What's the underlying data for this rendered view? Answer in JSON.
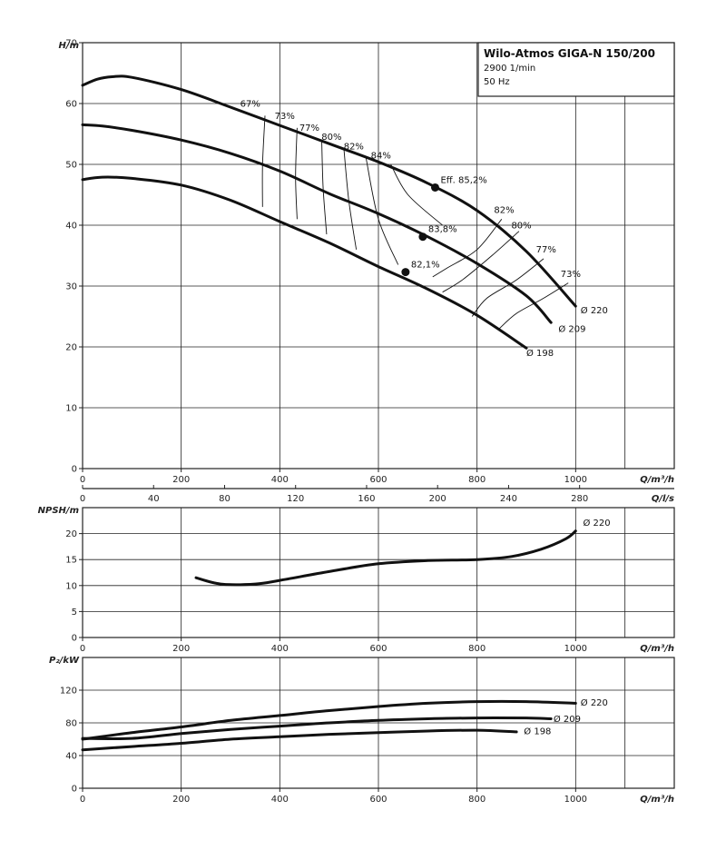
{
  "title": {
    "name": "Wilo-Atmos GIGA-N 150/200",
    "speed": "2900 1/min",
    "frequency": "50 Hz"
  },
  "chart_data": [
    {
      "type": "line",
      "name": "head",
      "ylabel": "H/m",
      "xlabel": "Q/m³/h",
      "xlim": [
        0,
        1200
      ],
      "ylim": [
        0,
        70
      ],
      "xticks": [
        0,
        200,
        400,
        600,
        800,
        1000
      ],
      "yticks": [
        0,
        10,
        20,
        30,
        40,
        50,
        60,
        70
      ],
      "secondary_x": {
        "label": "Q/l/s",
        "ticks": [
          0,
          40,
          80,
          120,
          160,
          200,
          240,
          280
        ]
      },
      "grid": true,
      "series": [
        {
          "name": "Ø 220",
          "points": [
            [
              0,
              63
            ],
            [
              30,
              64
            ],
            [
              60,
              64.4
            ],
            [
              100,
              64.3
            ],
            [
              200,
              62.3
            ],
            [
              300,
              59.4
            ],
            [
              400,
              56.4
            ],
            [
              500,
              53.4
            ],
            [
              600,
              50.4
            ],
            [
              700,
              46.9
            ],
            [
              800,
              42.4
            ],
            [
              900,
              35.7
            ],
            [
              1000,
              26.7
            ]
          ]
        },
        {
          "name": "Ø 209",
          "points": [
            [
              0,
              56.5
            ],
            [
              40,
              56.3
            ],
            [
              100,
              55.6
            ],
            [
              200,
              54
            ],
            [
              300,
              51.8
            ],
            [
              400,
              48.9
            ],
            [
              500,
              45.2
            ],
            [
              600,
              41.9
            ],
            [
              700,
              38.1
            ],
            [
              800,
              33.7
            ],
            [
              900,
              28.4
            ],
            [
              950,
              24
            ]
          ]
        },
        {
          "name": "Ø 198",
          "points": [
            [
              0,
              47.5
            ],
            [
              40,
              47.9
            ],
            [
              100,
              47.7
            ],
            [
              200,
              46.6
            ],
            [
              300,
              44.1
            ],
            [
              400,
              40.6
            ],
            [
              500,
              37.1
            ],
            [
              600,
              33.2
            ],
            [
              700,
              29.5
            ],
            [
              800,
              25.2
            ],
            [
              900,
              19.8
            ]
          ]
        }
      ],
      "efficiency_lines": [
        {
          "label": "67%",
          "points": [
            [
              370,
              58
            ],
            [
              365,
              50
            ],
            [
              365,
              43
            ]
          ]
        },
        {
          "label": "73%",
          "points": [
            [
              435,
              56
            ],
            [
              432,
              48
            ],
            [
              435,
              41
            ]
          ]
        },
        {
          "label": "77%",
          "points": [
            [
              485,
              54
            ],
            [
              488,
              46
            ],
            [
              495,
              38.5
            ]
          ]
        },
        {
          "label": "80%",
          "points": [
            [
              530,
              52.5
            ],
            [
              540,
              44
            ],
            [
              555,
              36
            ]
          ]
        },
        {
          "label": "82%",
          "points": [
            [
              575,
              51
            ],
            [
              600,
              41
            ],
            [
              640,
              33.5
            ]
          ]
        },
        {
          "label": "84%",
          "points": [
            [
              625,
              50
            ],
            [
              660,
              45
            ],
            [
              730,
              40
            ]
          ]
        },
        {
          "label": "82%",
          "points": [
            [
              850,
              41
            ],
            [
              800,
              36
            ],
            [
              740,
              33
            ],
            [
              710,
              31.5
            ]
          ]
        },
        {
          "label": "80%",
          "points": [
            [
              885,
              39
            ],
            [
              830,
              35
            ],
            [
              770,
              31
            ],
            [
              730,
              29
            ]
          ]
        },
        {
          "label": "77%",
          "points": [
            [
              935,
              34.5
            ],
            [
              880,
              31
            ],
            [
              820,
              28
            ],
            [
              790,
              25
            ]
          ]
        },
        {
          "label": "73%",
          "points": [
            [
              985,
              30.5
            ],
            [
              935,
              28
            ],
            [
              880,
              25.5
            ],
            [
              845,
              23
            ]
          ]
        }
      ],
      "efficiency_labels": [
        {
          "text": "67%",
          "x": 340,
          "y": 59.5
        },
        {
          "text": "73%",
          "x": 410,
          "y": 57.5
        },
        {
          "text": "77%",
          "x": 460,
          "y": 55.5
        },
        {
          "text": "80%",
          "x": 505,
          "y": 54
        },
        {
          "text": "82%",
          "x": 550,
          "y": 52.5
        },
        {
          "text": "84%",
          "x": 605,
          "y": 51
        },
        {
          "text": "82%",
          "x": 855,
          "y": 42
        },
        {
          "text": "80%",
          "x": 890,
          "y": 39.5
        },
        {
          "text": "77%",
          "x": 940,
          "y": 35.5
        },
        {
          "text": "73%",
          "x": 990,
          "y": 31.5
        }
      ],
      "best_efficiency_points": [
        {
          "label": "Eff. 85,2%",
          "x": 715,
          "y": 46.2
        },
        {
          "label": "83,8%",
          "x": 690,
          "y": 38.1
        },
        {
          "label": "82,1%",
          "x": 655,
          "y": 32.3
        }
      ],
      "end_labels": [
        {
          "text": "Ø 220",
          "x": 1010,
          "y": 25.5
        },
        {
          "text": "Ø 209",
          "x": 965,
          "y": 22.5
        },
        {
          "text": "Ø 198",
          "x": 900,
          "y": 18.5
        }
      ]
    },
    {
      "type": "line",
      "name": "npsh",
      "ylabel": "NPSH/m",
      "xlabel": "Q/m³/h",
      "xlim": [
        0,
        1200
      ],
      "ylim": [
        0,
        25
      ],
      "xticks": [
        0,
        200,
        400,
        600,
        800,
        1000
      ],
      "yticks": [
        0,
        5,
        10,
        15,
        20
      ],
      "grid": true,
      "series": [
        {
          "name": "Ø 220",
          "points": [
            [
              230,
              11.5
            ],
            [
              280,
              10.3
            ],
            [
              350,
              10.3
            ],
            [
              400,
              11
            ],
            [
              500,
              12.7
            ],
            [
              600,
              14.2
            ],
            [
              700,
              14.8
            ],
            [
              800,
              15
            ],
            [
              870,
              15.6
            ],
            [
              930,
              17
            ],
            [
              980,
              19
            ],
            [
              1000,
              20.5
            ]
          ]
        }
      ],
      "end_labels": [
        {
          "text": "Ø 220",
          "x": 1015,
          "y": 21.5
        }
      ]
    },
    {
      "type": "line",
      "name": "power",
      "ylabel": "P₂/kW",
      "xlabel": "Q/m³/h",
      "xlim": [
        0,
        1200
      ],
      "ylim": [
        0,
        160
      ],
      "xticks": [
        0,
        200,
        400,
        600,
        800,
        1000
      ],
      "yticks": [
        0,
        40,
        80,
        120
      ],
      "grid": true,
      "series": [
        {
          "name": "Ø 220",
          "points": [
            [
              0,
              60
            ],
            [
              100,
              68
            ],
            [
              200,
              75
            ],
            [
              300,
              83
            ],
            [
              400,
              89
            ],
            [
              500,
              95
            ],
            [
              600,
              100
            ],
            [
              700,
              104
            ],
            [
              800,
              106
            ],
            [
              900,
              106
            ],
            [
              1000,
              104
            ]
          ]
        },
        {
          "name": "Ø 209",
          "points": [
            [
              0,
              61
            ],
            [
              100,
              61
            ],
            [
              200,
              67
            ],
            [
              300,
              72
            ],
            [
              400,
              76
            ],
            [
              500,
              80
            ],
            [
              600,
              83
            ],
            [
              700,
              85
            ],
            [
              800,
              86
            ],
            [
              900,
              86
            ],
            [
              950,
              85
            ]
          ]
        },
        {
          "name": "Ø 198",
          "points": [
            [
              0,
              47
            ],
            [
              100,
              51
            ],
            [
              200,
              55
            ],
            [
              300,
              60
            ],
            [
              400,
              63
            ],
            [
              500,
              66
            ],
            [
              600,
              68
            ],
            [
              700,
              70
            ],
            [
              800,
              71
            ],
            [
              880,
              69
            ]
          ]
        }
      ],
      "end_labels": [
        {
          "text": "Ø 220",
          "x": 1010,
          "y": 101
        },
        {
          "text": "Ø 209",
          "x": 955,
          "y": 81
        },
        {
          "text": "Ø 198",
          "x": 895,
          "y": 66
        }
      ]
    }
  ]
}
